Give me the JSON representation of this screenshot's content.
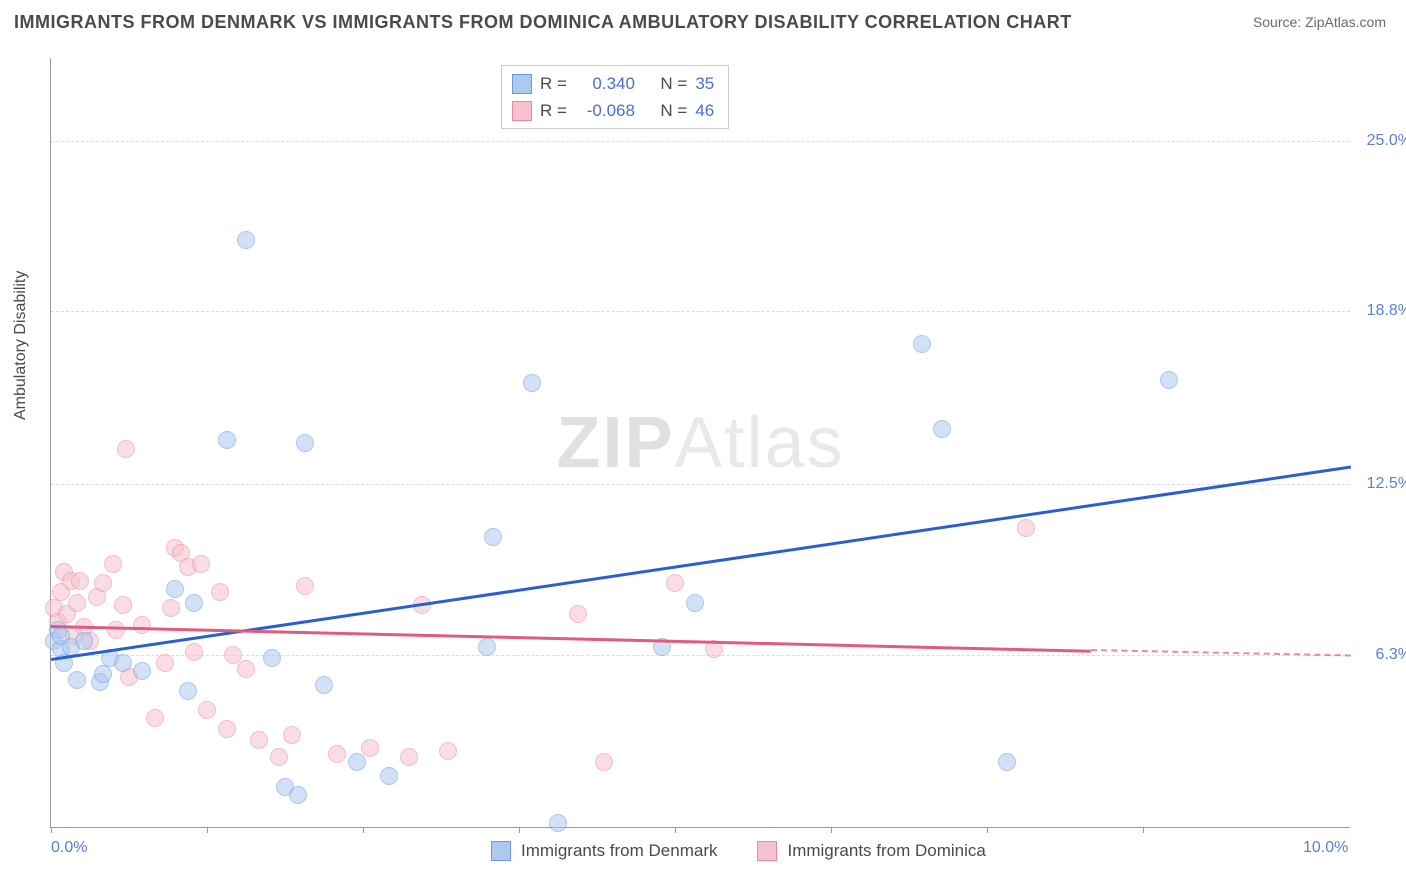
{
  "title": "IMMIGRANTS FROM DENMARK VS IMMIGRANTS FROM DOMINICA AMBULATORY DISABILITY CORRELATION CHART",
  "source": "Source: ZipAtlas.com",
  "y_axis_label": "Ambulatory Disability",
  "watermark": "ZIPAtlas",
  "chart": {
    "type": "scatter",
    "background_color": "#ffffff",
    "grid_color": "#dcdcdc",
    "axis_color": "#999999",
    "text_color": "#4a4a4a",
    "tick_label_color": "#5a7fd6",
    "xlim": [
      0,
      10
    ],
    "ylim": [
      0,
      28
    ],
    "x_ticks": [
      0,
      1.2,
      2.4,
      3.6,
      4.8,
      6.0,
      7.2,
      8.4
    ],
    "x_tick_labels": {
      "0": "0.0%",
      "10": "10.0%"
    },
    "y_gridlines": [
      6.3,
      12.5,
      18.8,
      25.0
    ],
    "y_tick_labels": [
      "6.3%",
      "12.5%",
      "18.8%",
      "25.0%"
    ],
    "marker_radius": 9,
    "marker_opacity": 0.55,
    "line_width": 2.5
  },
  "series": {
    "denmark": {
      "label": "Immigrants from Denmark",
      "color_fill": "#aec9ef",
      "color_stroke": "#6a9be0",
      "trend_color": "#2a5fd0",
      "R": "0.340",
      "N": "35",
      "trendline": {
        "x1": 0.0,
        "y1": 6.2,
        "x2": 10.0,
        "y2": 13.2
      },
      "points": [
        [
          0.02,
          6.8
        ],
        [
          0.05,
          7.2
        ],
        [
          0.08,
          6.5
        ],
        [
          0.08,
          7.0
        ],
        [
          0.1,
          6.0
        ],
        [
          0.15,
          6.6
        ],
        [
          0.2,
          5.4
        ],
        [
          0.25,
          6.8
        ],
        [
          0.38,
          5.3
        ],
        [
          0.4,
          5.6
        ],
        [
          0.45,
          6.2
        ],
        [
          0.55,
          6.0
        ],
        [
          0.7,
          5.7
        ],
        [
          0.95,
          8.7
        ],
        [
          1.05,
          5.0
        ],
        [
          1.1,
          8.2
        ],
        [
          1.35,
          14.1
        ],
        [
          1.5,
          21.4
        ],
        [
          1.7,
          6.2
        ],
        [
          1.8,
          1.5
        ],
        [
          1.9,
          1.2
        ],
        [
          1.95,
          14.0
        ],
        [
          2.1,
          5.2
        ],
        [
          2.35,
          2.4
        ],
        [
          2.6,
          1.9
        ],
        [
          3.35,
          6.6
        ],
        [
          3.4,
          10.6
        ],
        [
          3.7,
          16.2
        ],
        [
          3.9,
          0.2
        ],
        [
          4.7,
          6.6
        ],
        [
          4.95,
          8.2
        ],
        [
          6.7,
          17.6
        ],
        [
          6.85,
          14.5
        ],
        [
          7.35,
          2.4
        ],
        [
          8.6,
          16.3
        ]
      ]
    },
    "dominica": {
      "label": "Immigrants from Dominica",
      "color_fill": "#f6c2ce",
      "color_stroke": "#e98aa0",
      "trend_color": "#e15b7e",
      "R": "-0.068",
      "N": "46",
      "trendline": {
        "x1": 0.0,
        "y1": 7.4,
        "x2": 8.0,
        "y2": 6.5
      },
      "trendline_dash": {
        "x1": 8.0,
        "y1": 6.5,
        "x2": 10.0,
        "y2": 6.3
      },
      "points": [
        [
          0.02,
          8.0
        ],
        [
          0.05,
          7.5
        ],
        [
          0.08,
          8.6
        ],
        [
          0.1,
          9.3
        ],
        [
          0.12,
          7.8
        ],
        [
          0.15,
          9.0
        ],
        [
          0.18,
          7.0
        ],
        [
          0.2,
          8.2
        ],
        [
          0.22,
          9.0
        ],
        [
          0.25,
          7.3
        ],
        [
          0.3,
          6.8
        ],
        [
          0.35,
          8.4
        ],
        [
          0.4,
          8.9
        ],
        [
          0.48,
          9.6
        ],
        [
          0.5,
          7.2
        ],
        [
          0.55,
          8.1
        ],
        [
          0.58,
          13.8
        ],
        [
          0.6,
          5.5
        ],
        [
          0.7,
          7.4
        ],
        [
          0.8,
          4.0
        ],
        [
          0.88,
          6.0
        ],
        [
          0.92,
          8.0
        ],
        [
          0.95,
          10.2
        ],
        [
          1.0,
          10.0
        ],
        [
          1.05,
          9.5
        ],
        [
          1.1,
          6.4
        ],
        [
          1.15,
          9.6
        ],
        [
          1.2,
          4.3
        ],
        [
          1.3,
          8.6
        ],
        [
          1.35,
          3.6
        ],
        [
          1.4,
          6.3
        ],
        [
          1.5,
          5.8
        ],
        [
          1.6,
          3.2
        ],
        [
          1.75,
          2.6
        ],
        [
          1.85,
          3.4
        ],
        [
          1.95,
          8.8
        ],
        [
          2.2,
          2.7
        ],
        [
          2.45,
          2.9
        ],
        [
          2.75,
          2.6
        ],
        [
          2.85,
          8.1
        ],
        [
          3.05,
          2.8
        ],
        [
          4.05,
          7.8
        ],
        [
          4.25,
          2.4
        ],
        [
          4.8,
          8.9
        ],
        [
          5.1,
          6.5
        ],
        [
          7.5,
          10.9
        ]
      ]
    }
  },
  "legend_top": {
    "r_label": "R =",
    "n_label": "N ="
  }
}
